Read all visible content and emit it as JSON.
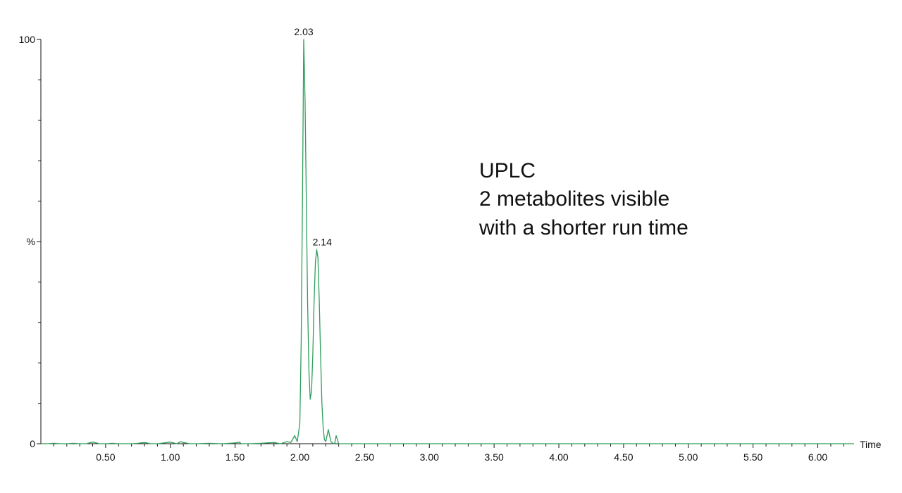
{
  "chart_data": {
    "type": "line",
    "xlabel": "Time",
    "ylabel": "",
    "xlim": [
      0.0,
      6.28
    ],
    "ylim": [
      0,
      100
    ],
    "grid": false,
    "x_ticks": [
      "0.50",
      "1.00",
      "1.50",
      "2.00",
      "2.50",
      "3.00",
      "3.50",
      "4.00",
      "4.50",
      "5.00",
      "5.50",
      "6.00"
    ],
    "y_ticks": [
      "0",
      "%",
      "100"
    ],
    "line_color": "#2e9e5b",
    "peak_labels": [
      {
        "x": 2.03,
        "y": 100,
        "text": "2.03"
      },
      {
        "x": 2.14,
        "y": 48,
        "text": "2.14"
      }
    ],
    "annotation_lines": [
      "UPLC",
      "2 metabolites visible",
      "with a shorter run time"
    ],
    "series": [
      {
        "x": [
          0.0,
          0.05,
          0.1,
          0.15,
          0.2,
          0.25,
          0.3,
          0.35,
          0.4,
          0.43,
          0.45,
          0.5,
          0.55,
          0.6,
          0.65,
          0.7,
          0.75,
          0.8,
          0.85,
          0.9,
          0.95,
          1.0,
          1.05,
          1.08,
          1.1,
          1.15,
          1.2,
          1.3,
          1.4,
          1.5,
          1.53,
          1.55,
          1.6,
          1.7,
          1.8,
          1.85,
          1.9,
          1.93,
          1.96,
          1.98,
          2.0,
          2.01,
          2.02,
          2.03,
          2.04,
          2.05,
          2.06,
          2.07,
          2.08,
          2.09,
          2.1,
          2.11,
          2.12,
          2.13,
          2.14,
          2.15,
          2.16,
          2.17,
          2.18,
          2.19,
          2.2,
          2.22,
          2.24,
          2.26,
          2.27,
          2.28,
          2.3,
          2.35,
          2.36,
          2.37,
          2.4,
          2.5,
          2.6,
          2.7,
          2.8,
          2.9,
          3.0,
          3.1,
          3.2,
          3.3,
          3.4,
          3.5,
          3.6,
          3.7,
          3.8,
          3.9,
          4.0,
          4.1,
          4.2,
          4.3,
          4.4,
          4.5,
          4.55,
          4.58,
          4.6,
          4.65,
          4.7,
          4.8,
          4.9,
          4.92,
          4.95,
          5.0,
          5.1,
          5.2,
          5.3,
          5.4,
          5.5,
          5.6,
          5.7,
          5.8,
          5.9,
          6.0,
          6.1,
          6.2,
          6.28
        ],
        "values": [
          0,
          0,
          0.1,
          0,
          0,
          0.1,
          0,
          0,
          0.4,
          0.2,
          0,
          0,
          0.1,
          0,
          0,
          0,
          0.1,
          0.3,
          0,
          0,
          0.2,
          0.4,
          0,
          0.5,
          0.3,
          0,
          0,
          0.1,
          0,
          0.2,
          0.4,
          0,
          0,
          0.1,
          0.3,
          0,
          0.5,
          0.3,
          2,
          0.5,
          5,
          25,
          60,
          100,
          85,
          60,
          35,
          18,
          11,
          13,
          22,
          35,
          45,
          48,
          46,
          35,
          22,
          10,
          4,
          1,
          0.5,
          3.5,
          0.5,
          0,
          0.2,
          2,
          0,
          0,
          0,
          0,
          0,
          0,
          0,
          0,
          0,
          0,
          0,
          0,
          0,
          0,
          0,
          0,
          0,
          0,
          0,
          0,
          0,
          0,
          0,
          0,
          0,
          0,
          0,
          0,
          0,
          0,
          0,
          0,
          0,
          0,
          0,
          0,
          0,
          0,
          0,
          0,
          0,
          0,
          0,
          0,
          0,
          0,
          0,
          0,
          0
        ]
      }
    ]
  }
}
